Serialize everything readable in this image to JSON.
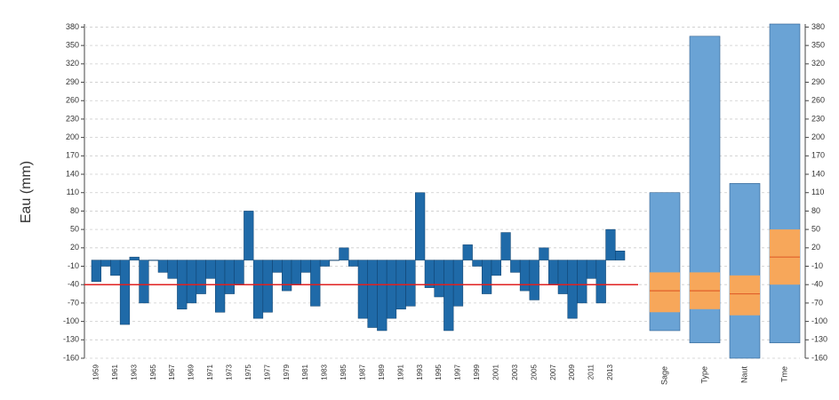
{
  "chart_data": [
    {
      "type": "bar",
      "y_label": "Eau (mm)",
      "color": "#1f6aa8",
      "ylim": [
        -160,
        385
      ],
      "yticks": [
        -160,
        -130,
        -100,
        -70,
        -40,
        -10,
        20,
        50,
        80,
        110,
        140,
        170,
        200,
        230,
        260,
        290,
        320,
        350,
        380
      ],
      "grid": true,
      "reference_line": -40,
      "reference_color": "#e02020",
      "categories": [
        "1959",
        null,
        "1961",
        null,
        "1963",
        null,
        "1965",
        null,
        "1967",
        null,
        "1969",
        null,
        "1971",
        null,
        "1973",
        null,
        "1975",
        null,
        "1977",
        null,
        "1979",
        null,
        "1981",
        null,
        "1983",
        null,
        "1985",
        null,
        "1987",
        null,
        "1989",
        null,
        "1991",
        null,
        "1993",
        null,
        "1995",
        null,
        "1997",
        null,
        "1999",
        null,
        "2001",
        null,
        "2003",
        null,
        "2005",
        null,
        "2007",
        null,
        "2009",
        null,
        "2011",
        null,
        "2013",
        null
      ],
      "values": [
        -35,
        -10,
        -25,
        -105,
        5,
        -70,
        0,
        -20,
        -30,
        -80,
        -70,
        -55,
        -30,
        -85,
        -55,
        -40,
        80,
        -95,
        -85,
        -20,
        -50,
        -40,
        -20,
        -75,
        -10,
        0,
        20,
        -10,
        -95,
        -110,
        -115,
        -95,
        -80,
        -75,
        110,
        -45,
        -60,
        -115,
        -75,
        25,
        -10,
        -55,
        -25,
        45,
        -20,
        -50,
        -65,
        20,
        -40,
        -55,
        -95,
        -70,
        -30,
        -70,
        50,
        15
      ]
    },
    {
      "type": "range",
      "ylim": [
        -160,
        385
      ],
      "yticks": [
        -160,
        -130,
        -100,
        -70,
        -40,
        -10,
        20,
        50,
        80,
        110,
        140,
        170,
        200,
        230,
        260,
        290,
        320,
        350,
        380
      ],
      "range_color": "#6aa3d5",
      "iqr_color": "#f7a75a",
      "median_color": "#e0602a",
      "categories": [
        "Sage",
        "Type",
        "Naut",
        "Tme"
      ],
      "min": [
        -115,
        -135,
        -160,
        -135
      ],
      "q1": [
        -85,
        -80,
        -90,
        -40
      ],
      "median": [
        -50,
        -50,
        -55,
        5
      ],
      "q3": [
        -20,
        -20,
        -25,
        50
      ],
      "max": [
        110,
        365,
        125,
        385
      ]
    }
  ]
}
